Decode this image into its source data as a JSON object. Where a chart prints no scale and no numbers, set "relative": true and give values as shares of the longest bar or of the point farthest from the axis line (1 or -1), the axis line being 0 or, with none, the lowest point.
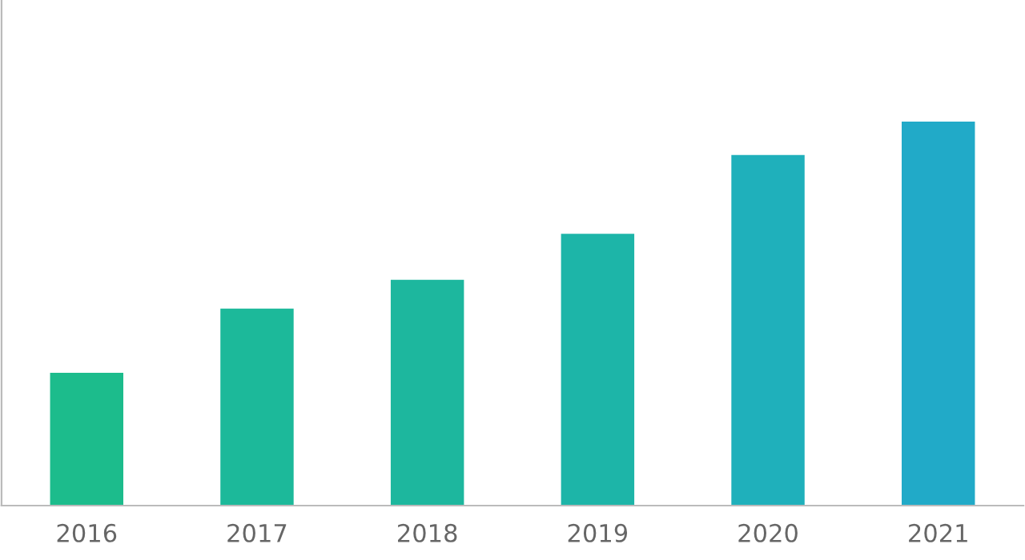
{
  "chart_data": {
    "type": "bar",
    "relative": true,
    "categories": [
      "2016",
      "2017",
      "2018",
      "2019",
      "2020",
      "2021"
    ],
    "values": [
      0.346,
      0.513,
      0.588,
      0.708,
      0.913,
      1
    ],
    "colors": [
      "#1cbc8c",
      "#1cb99a",
      "#1db79e",
      "#1db5a8",
      "#1fb0bb",
      "#21aac8"
    ],
    "grid": false,
    "legend": false
  }
}
